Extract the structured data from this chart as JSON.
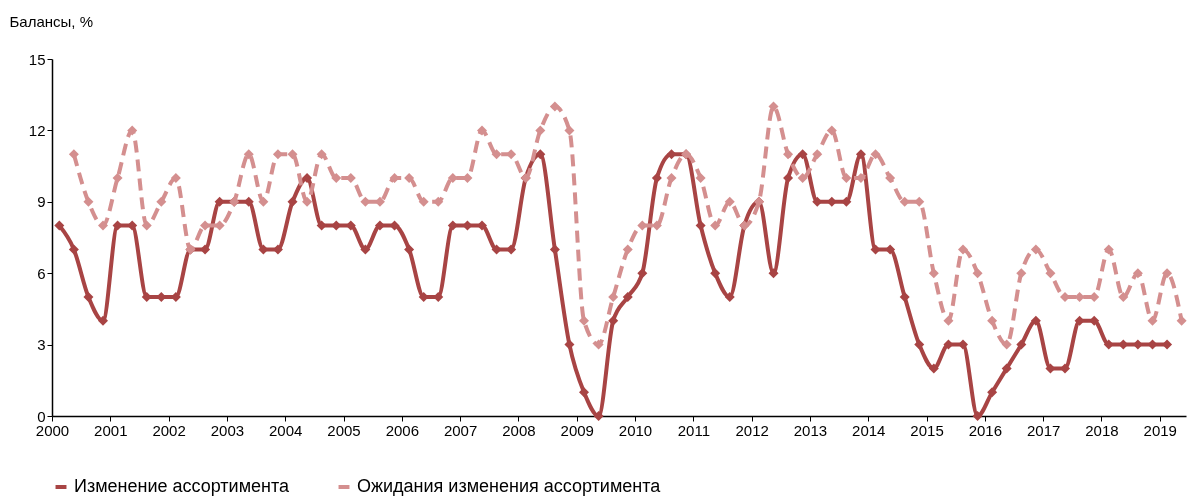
{
  "chart_data": {
    "type": "line",
    "ylabel": "Балансы, %",
    "x": [
      2000.125,
      2000.375,
      2000.625,
      2000.875,
      2001.125,
      2001.375,
      2001.625,
      2001.875,
      2002.125,
      2002.375,
      2002.625,
      2002.875,
      2003.125,
      2003.375,
      2003.625,
      2003.875,
      2004.125,
      2004.375,
      2004.625,
      2004.875,
      2005.125,
      2005.375,
      2005.625,
      2005.875,
      2006.125,
      2006.375,
      2006.625,
      2006.875,
      2007.125,
      2007.375,
      2007.625,
      2007.875,
      2008.125,
      2008.375,
      2008.625,
      2008.875,
      2009.125,
      2009.375,
      2009.625,
      2009.875,
      2010.125,
      2010.375,
      2010.625,
      2010.875,
      2011.125,
      2011.375,
      2011.625,
      2011.875,
      2012.125,
      2012.375,
      2012.625,
      2012.875,
      2013.125,
      2013.375,
      2013.625,
      2013.875,
      2014.125,
      2014.375,
      2014.625,
      2014.875,
      2015.125,
      2015.375,
      2015.625,
      2015.875,
      2016.125,
      2016.375,
      2016.625,
      2016.875,
      2017.125,
      2017.375,
      2017.625,
      2017.875,
      2018.125,
      2018.375,
      2018.625,
      2018.875,
      2019.125,
      2019.375
    ],
    "series": [
      {
        "name": "Изменение ассортимента",
        "color": "#a84444",
        "line_style": "solid",
        "values": [
          8,
          7,
          5,
          4,
          8,
          8,
          5,
          5,
          5,
          7,
          7,
          9,
          9,
          9,
          7,
          7,
          9,
          10,
          8,
          8,
          8,
          7,
          8,
          8,
          7,
          5,
          5,
          8,
          8,
          8,
          7,
          7,
          10,
          11,
          7,
          3,
          1,
          0,
          4,
          5,
          6,
          10,
          11,
          11,
          8,
          6,
          5,
          8,
          9,
          6,
          10,
          11,
          9,
          9,
          9,
          11,
          7,
          7,
          5,
          3,
          2,
          3,
          3,
          0,
          1,
          2,
          3,
          4,
          2,
          2,
          4,
          4,
          3,
          3,
          3,
          3,
          3,
          null
        ]
      },
      {
        "name": "Ожидания изменения ассортимента",
        "color": "#d48f8f",
        "line_style": "dashed",
        "values": [
          null,
          11,
          9,
          8,
          10,
          12,
          8,
          9,
          10,
          7,
          8,
          8,
          9,
          11,
          9,
          11,
          11,
          9,
          11,
          10,
          10,
          9,
          9,
          10,
          10,
          9,
          9,
          10,
          10,
          12,
          11,
          11,
          10,
          12,
          13,
          12,
          4,
          3,
          5,
          7,
          8,
          8,
          10,
          11,
          10,
          8,
          9,
          8,
          9,
          13,
          11,
          10,
          11,
          12,
          10,
          10,
          11,
          10,
          9,
          9,
          6,
          4,
          7,
          6,
          4,
          3,
          6,
          7,
          6,
          5,
          5,
          5,
          7,
          5,
          6,
          4,
          6,
          4
        ]
      }
    ],
    "xlim": [
      2000,
      2019.45
    ],
    "xticks": [
      2000,
      2001,
      2002,
      2003,
      2004,
      2005,
      2006,
      2007,
      2008,
      2009,
      2010,
      2011,
      2012,
      2013,
      2014,
      2015,
      2016,
      2017,
      2018,
      2019
    ],
    "ylim": [
      0,
      15
    ],
    "yticks": [
      0,
      3,
      6,
      9,
      12,
      15
    ],
    "grid": false,
    "legend": "bottom",
    "marker": "diamond"
  }
}
